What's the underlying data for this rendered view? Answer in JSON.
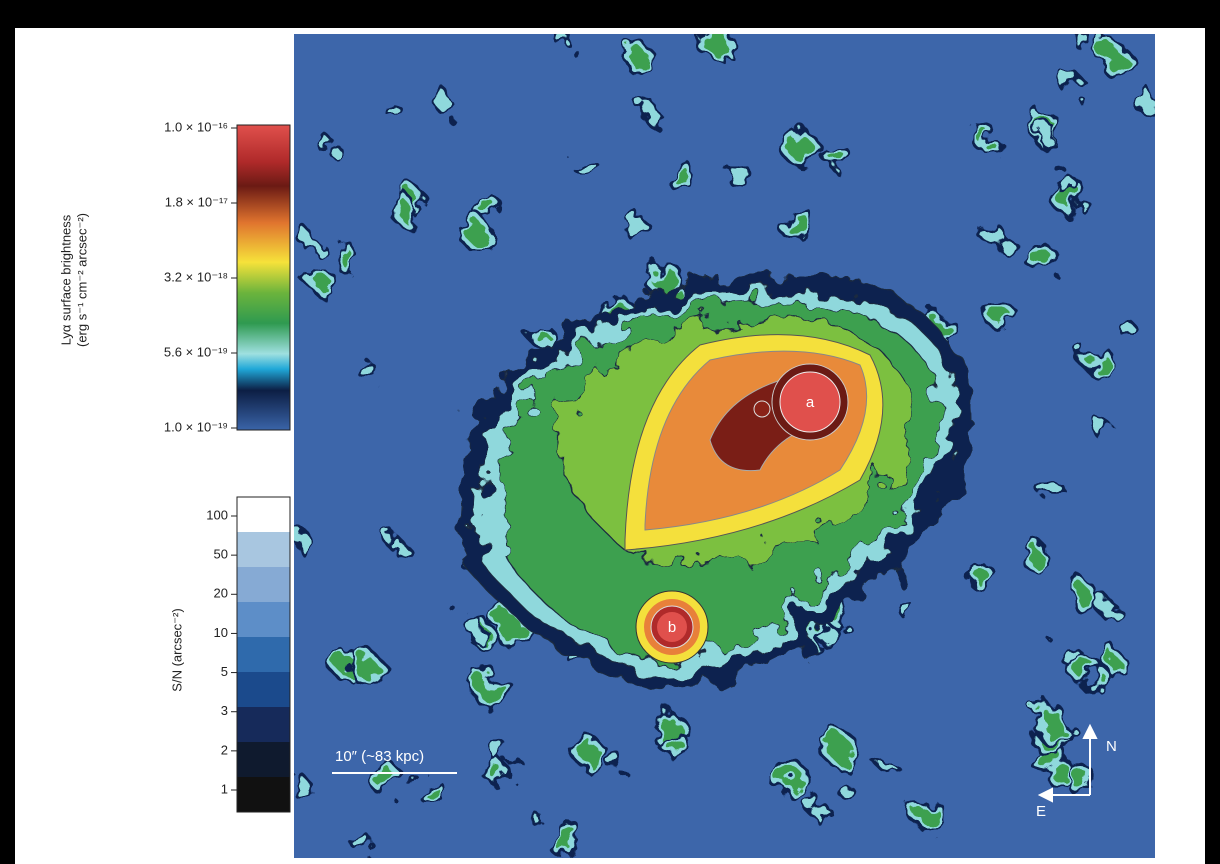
{
  "colorbar": {
    "label_line1": "Lyα surface brightness",
    "label_line2": "(erg s⁻¹ cm⁻² arcsec⁻²)",
    "ticks": [
      "1.0 × 10⁻¹⁶",
      "1.8 × 10⁻¹⁷",
      "3.2 × 10⁻¹⁸",
      "5.6 × 10⁻¹⁹",
      "1.0 × 10⁻¹⁹"
    ]
  },
  "sn_bar": {
    "label": "S/N (arcsec⁻²)",
    "ticks": [
      100,
      50,
      20,
      10,
      5,
      3,
      2,
      1
    ]
  },
  "scale_bar": "10″ (~83 kpc)",
  "sources": [
    "a",
    "b"
  ],
  "compass": {
    "north": "N",
    "east": "E"
  }
}
